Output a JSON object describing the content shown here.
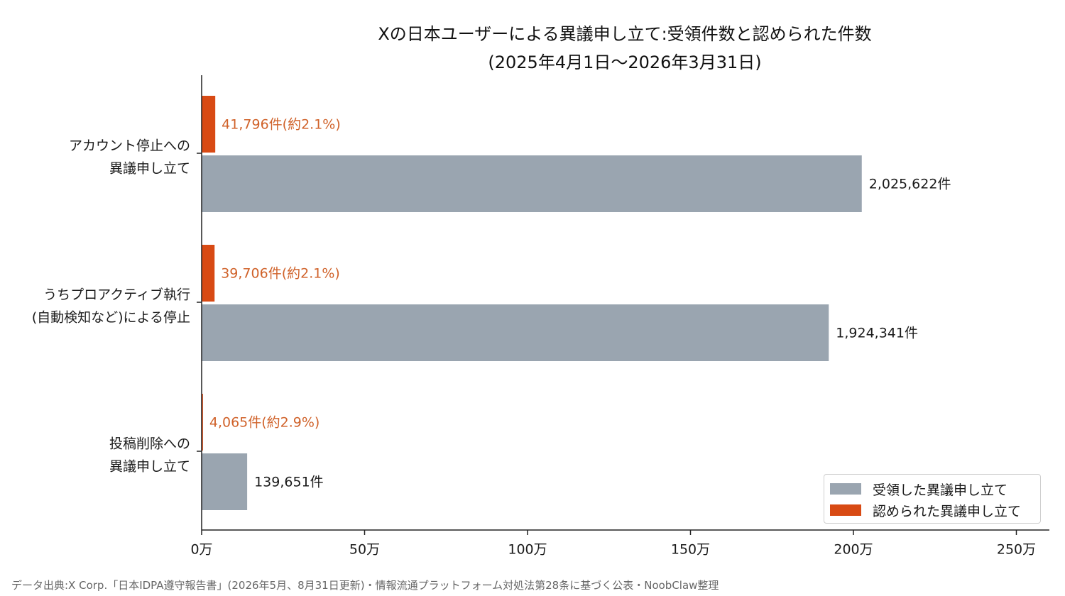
{
  "title_line1": "Xの日本ユーザーによる異議申し立て:受領件数と認められた件数",
  "title_line2": "(2025年4月1日〜2026年3月31日)",
  "footer": "データ出典:X Corp.「日本IDPA遵守報告書」(2026年5月、8月31日更新)・情報流通プラットフォーム対処法第28条に基づく公表・NoobClaw整理",
  "colors": {
    "received": "#9aa5b0",
    "accepted": "#d84a14",
    "accepted_text": "#d0622a",
    "axis": "#222222"
  },
  "legend": {
    "received": "受領した異議申し立て",
    "accepted": "認められた異議申し立て"
  },
  "chart_data": {
    "type": "bar",
    "orientation": "horizontal",
    "categories": [
      [
        "アカウント停止への",
        "異議申し立て"
      ],
      [
        "うちプロアクティブ執行",
        "(自動検知など)による停止"
      ],
      [
        "投稿削除への",
        "異議申し立て"
      ]
    ],
    "series": [
      {
        "name": "受領した異議申し立て",
        "values": [
          2025622,
          1924341,
          139651
        ],
        "labels": [
          "2,025,622件",
          "1,924,341件",
          "139,651件"
        ]
      },
      {
        "name": "認められた異議申し立て",
        "values": [
          41796,
          39706,
          4065
        ],
        "labels": [
          "41,796件(約2.1%)",
          "39,706件(約2.1%)",
          "4,065件(約2.9%)"
        ]
      }
    ],
    "xlim": [
      0,
      2600000
    ],
    "xticks": [
      0,
      500000,
      1000000,
      1500000,
      2000000,
      2500000
    ],
    "xtick_labels": [
      "0万",
      "50万",
      "100万",
      "150万",
      "200万",
      "250万"
    ],
    "legend_position": "bottom-right",
    "grid": false
  }
}
